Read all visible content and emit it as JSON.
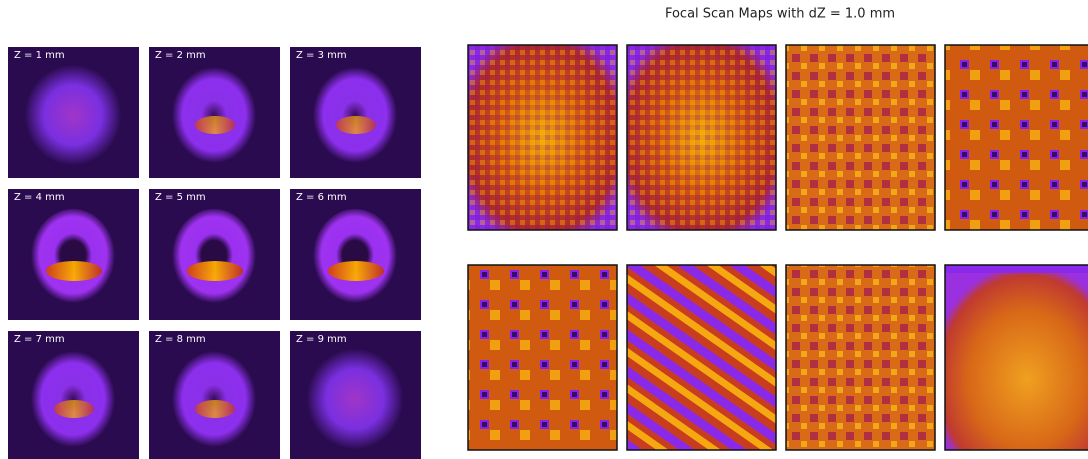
{
  "left_panels": {
    "labels": [
      "Z = 1 mm",
      "Z = 2 mm",
      "Z = 3 mm",
      "Z = 4 mm",
      "Z = 5 mm",
      "Z = 6 mm",
      "Z = 7 mm",
      "Z = 8 mm",
      "Z = 9 mm"
    ]
  },
  "right_panel": {
    "title": "Focal Scan Maps with dZ = 1.0 mm"
  }
}
